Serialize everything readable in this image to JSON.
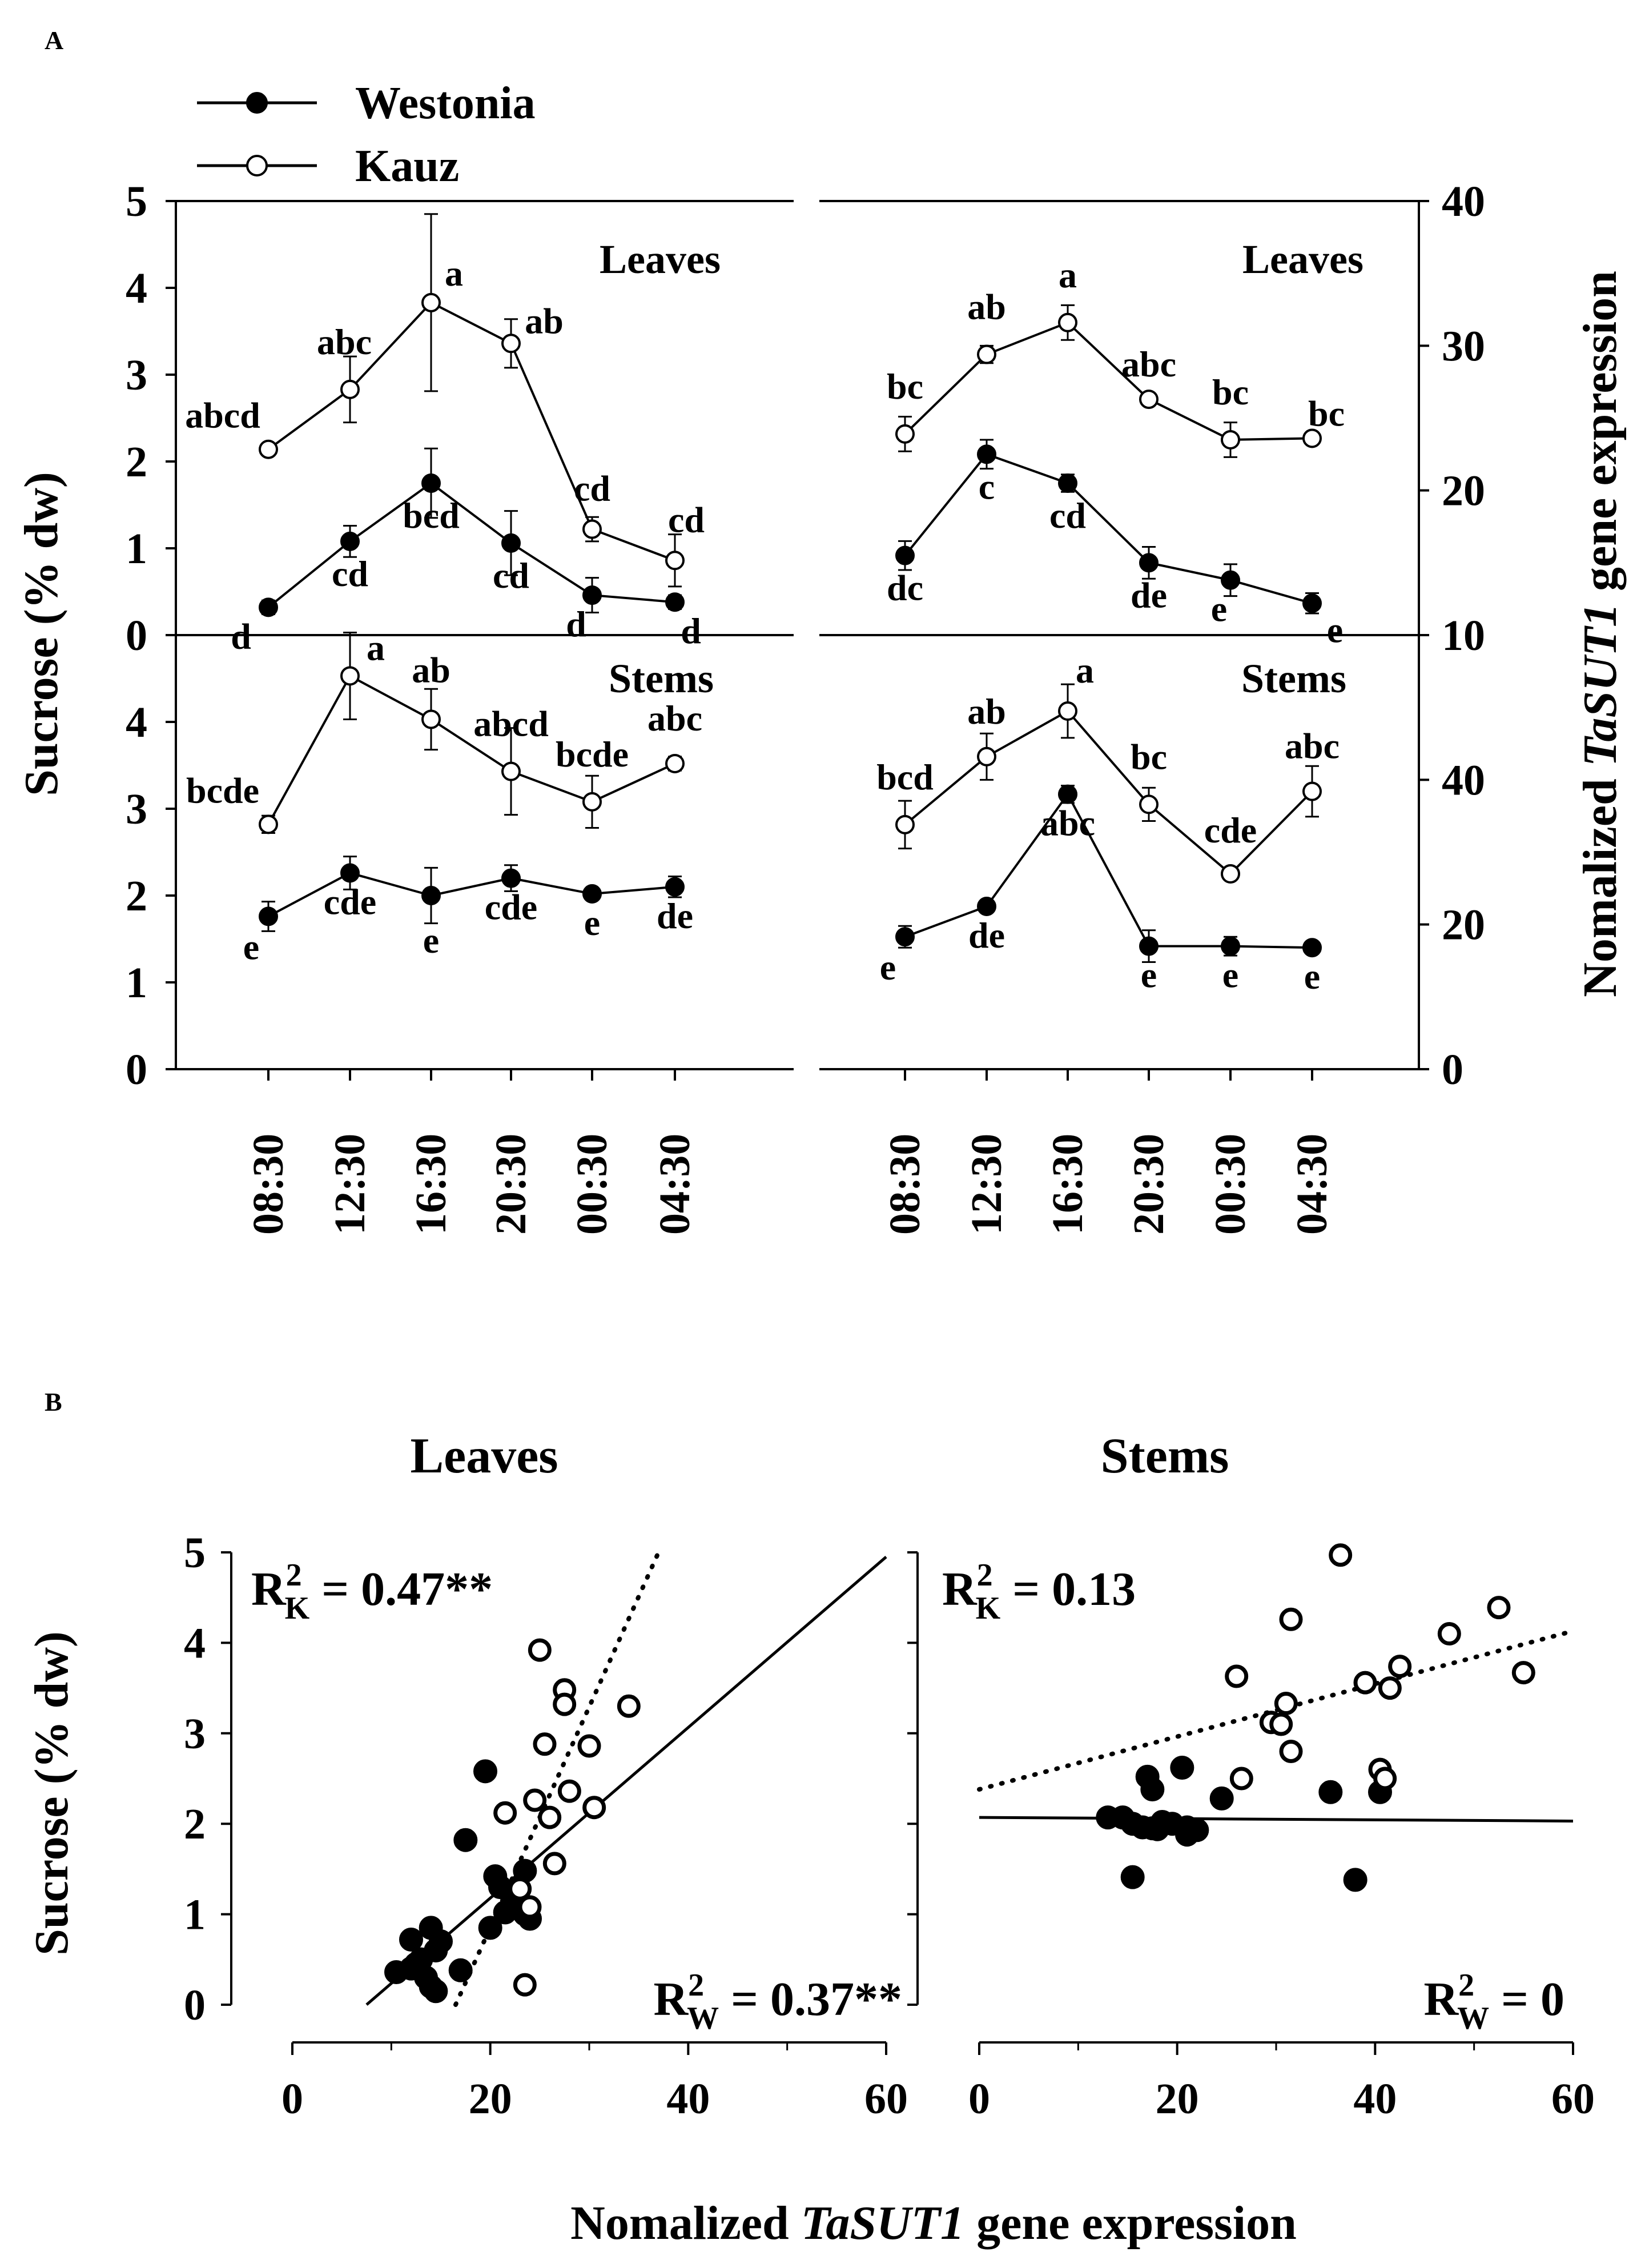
{
  "panel_labels": {
    "a": "A",
    "b": "B"
  },
  "legend": {
    "westonia": "Westonia",
    "kauz": "Kauz"
  },
  "axis_titles": {
    "sucrose": "Sucrose (% dw)",
    "expression_prefix": "Nomalized ",
    "expression_gene": "TaSUT1",
    "expression_suffix": " gene expression"
  },
  "tissues": {
    "leaves": "Leaves",
    "stems": "Stems"
  },
  "columns_b": {
    "leaves": "Leaves",
    "stems": "Stems"
  },
  "colors": {
    "ink": "#000000",
    "background": "#ffffff"
  },
  "chart_data": [
    {
      "id": "A-sucrose-leaves",
      "type": "line",
      "title": "Leaves",
      "ylabel": "Sucrose (% dw)",
      "categories": [
        "08:30",
        "12:30",
        "16:30",
        "20:30",
        "00:30",
        "04:30"
      ],
      "ylim": [
        0,
        5
      ],
      "yticks": [
        "0",
        "1",
        "2",
        "3",
        "4",
        "5"
      ],
      "series": [
        {
          "name": "Westonia",
          "marker": "filled",
          "values": [
            0.32,
            1.08,
            1.75,
            1.06,
            0.46,
            0.38
          ],
          "errors": [
            0.08,
            0.18,
            0.4,
            0.37,
            0.2,
            0.08
          ],
          "letters": [
            "d",
            "cd",
            "bcd",
            "cd",
            "d",
            "d"
          ]
        },
        {
          "name": "Kauz",
          "marker": "open",
          "values": [
            2.14,
            2.83,
            3.83,
            3.36,
            1.22,
            0.86
          ],
          "errors": [
            0.0,
            0.38,
            1.02,
            0.28,
            0.14,
            0.3
          ],
          "letters": [
            "abcd",
            "abc",
            "a",
            "ab",
            "cd",
            "cd"
          ]
        }
      ]
    },
    {
      "id": "A-expression-leaves",
      "type": "line",
      "title": "Leaves",
      "ylabel": "Nomalized TaSUT1 gene expression",
      "categories": [
        "08:30",
        "12:30",
        "16:30",
        "20:30",
        "00:30",
        "04:30"
      ],
      "ylim": [
        10,
        40
      ],
      "yticks": [
        "10",
        "20",
        "30",
        "40"
      ],
      "series": [
        {
          "name": "Westonia",
          "marker": "filled",
          "values": [
            15.5,
            22.5,
            20.5,
            15.0,
            13.8,
            12.2
          ],
          "errors": [
            1.0,
            1.0,
            0.6,
            1.1,
            1.1,
            0.7
          ],
          "letters": [
            "dc",
            "c",
            "cd",
            "de",
            "e",
            "e"
          ]
        },
        {
          "name": "Kauz",
          "marker": "open",
          "values": [
            23.9,
            29.4,
            31.6,
            26.3,
            23.5,
            23.6
          ],
          "errors": [
            1.2,
            0.6,
            1.2,
            0.4,
            1.2,
            0.1
          ],
          "letters": [
            "bc",
            "ab",
            "a",
            "abc",
            "bc",
            "bc"
          ]
        }
      ]
    },
    {
      "id": "A-sucrose-stems",
      "type": "line",
      "title": "Stems",
      "ylabel": "Sucrose (% dw)",
      "categories": [
        "08:30",
        "12:30",
        "16:30",
        "20:30",
        "00:30",
        "04:30"
      ],
      "ylim": [
        0,
        5
      ],
      "yticks": [
        "0",
        "1",
        "2",
        "3",
        "4"
      ],
      "series": [
        {
          "name": "Westonia",
          "marker": "filled",
          "values": [
            1.76,
            2.26,
            2.0,
            2.2,
            2.02,
            2.1
          ],
          "errors": [
            0.17,
            0.19,
            0.32,
            0.15,
            0.03,
            0.12
          ],
          "letters": [
            "e",
            "cde",
            "e",
            "cde",
            "e",
            "de"
          ]
        },
        {
          "name": "Kauz",
          "marker": "open",
          "values": [
            2.82,
            4.53,
            4.03,
            3.43,
            3.08,
            3.52
          ],
          "errors": [
            0.1,
            0.5,
            0.35,
            0.5,
            0.3,
            0.08
          ],
          "letters": [
            "bcde",
            "a",
            "ab",
            "abcd",
            "bcde",
            "abc"
          ]
        }
      ]
    },
    {
      "id": "A-expression-stems",
      "type": "line",
      "title": "Stems",
      "ylabel": "Nomalized TaSUT1 gene expression",
      "categories": [
        "08:30",
        "12:30",
        "16:30",
        "20:30",
        "00:30",
        "04:30"
      ],
      "ylim": [
        0,
        60
      ],
      "yticks": [
        "0",
        "20",
        "40"
      ],
      "series": [
        {
          "name": "Westonia",
          "marker": "filled",
          "values": [
            18.3,
            22.5,
            38.0,
            17.0,
            17.0,
            16.8
          ],
          "errors": [
            1.5,
            0.7,
            1.2,
            2.2,
            1.3,
            0.2
          ],
          "letters": [
            "e",
            "de",
            "abc",
            "e",
            "e",
            "e"
          ]
        },
        {
          "name": "Kauz",
          "marker": "open",
          "values": [
            33.8,
            43.2,
            49.5,
            36.6,
            27.0,
            38.4
          ],
          "errors": [
            3.3,
            3.2,
            3.7,
            2.3,
            0.8,
            3.5
          ],
          "letters": [
            "bcd",
            "ab",
            "a",
            "bc",
            "cde",
            "abc"
          ]
        }
      ]
    },
    {
      "id": "B-leaves",
      "type": "scatter",
      "title": "Leaves",
      "xlabel": "Nomalized TaSUT1 gene expression",
      "ylabel": "Sucrose (% dw)",
      "xlim": [
        0,
        60
      ],
      "ylim": [
        0,
        5
      ],
      "xticks": [
        "0",
        "20",
        "40",
        "60"
      ],
      "yticks": [
        "0",
        "1",
        "2",
        "3",
        "4",
        "5"
      ],
      "annotations": {
        "kauz": {
          "base": "R",
          "sup": "2",
          "sub": "K",
          "value": " = 0.47**"
        },
        "westonia": {
          "base": "R",
          "sup": "2",
          "sub": "W",
          "value": " = 0.37**"
        }
      },
      "series": [
        {
          "name": "Westonia",
          "marker": "filled",
          "x": [
            10.5,
            12.0,
            13.0,
            14.0,
            14.5,
            15.0,
            12.5,
            13.5,
            14.5,
            17.0,
            17.5,
            19.5,
            20.5,
            21.0,
            22.5,
            23.5,
            24.0,
            23.5,
            21.5,
            20.0,
            14.0,
            12.0,
            13.0
          ],
          "y": [
            0.36,
            0.72,
            0.5,
            0.85,
            0.6,
            0.7,
            0.45,
            0.3,
            0.15,
            0.38,
            1.82,
            2.58,
            1.42,
            1.3,
            1.12,
            1.0,
            0.95,
            1.48,
            1.02,
            0.85,
            0.2,
            0.4,
            0.5
          ]
        },
        {
          "name": "Kauz",
          "marker": "open",
          "x": [
            23.5,
            24.0,
            25.0,
            25.5,
            26.0,
            26.5,
            27.5,
            27.5,
            28.0,
            30.0,
            30.5,
            34.0,
            21.5,
            23.0,
            24.5
          ],
          "y": [
            0.22,
            1.08,
            3.92,
            2.88,
            2.07,
            1.56,
            3.48,
            3.32,
            2.36,
            2.86,
            2.18,
            3.3,
            2.12,
            1.28,
            2.26
          ]
        }
      ],
      "fits": [
        {
          "name": "Westonia",
          "style": "solid",
          "x": [
            7.5,
            60
          ],
          "y": [
            0.0,
            4.95
          ]
        },
        {
          "name": "Kauz",
          "style": "dotted",
          "x": [
            16.5,
            37.0
          ],
          "y": [
            0.0,
            5.0
          ]
        }
      ]
    },
    {
      "id": "B-stems",
      "type": "scatter",
      "title": "Stems",
      "xlabel": "Nomalized TaSUT1 gene expression",
      "xlim": [
        0,
        60
      ],
      "ylim": [
        0,
        5
      ],
      "xticks": [
        "0",
        "20",
        "40",
        "60"
      ],
      "annotations": {
        "kauz": {
          "base": "R",
          "sup": "2",
          "sub": "K",
          "value": " = 0.13"
        },
        "westonia": {
          "base": "R",
          "sup": "2",
          "sub": "W",
          "value": " = 0"
        }
      },
      "series": [
        {
          "name": "Westonia",
          "marker": "filled",
          "x": [
            13.0,
            14.5,
            15.5,
            16.5,
            17.0,
            17.5,
            17.5,
            18.0,
            18.5,
            19.5,
            20.5,
            21.0,
            21.0,
            22.0,
            24.5,
            35.5,
            38.0,
            40.5,
            15.5
          ],
          "y": [
            2.07,
            2.07,
            2.0,
            1.96,
            2.52,
            2.38,
            1.95,
            1.94,
            2.02,
            2.0,
            2.62,
            1.88,
            1.96,
            1.93,
            2.28,
            2.35,
            1.38,
            2.35,
            1.41
          ]
        },
        {
          "name": "Kauz",
          "marker": "open",
          "x": [
            26.0,
            26.5,
            29.5,
            30.5,
            31.0,
            31.5,
            31.5,
            36.5,
            39.0,
            40.5,
            41.0,
            41.5,
            42.5,
            47.5,
            52.5,
            55.0
          ],
          "y": [
            3.63,
            2.5,
            3.12,
            3.1,
            3.33,
            2.8,
            4.26,
            4.97,
            3.56,
            2.6,
            2.5,
            3.5,
            3.74,
            4.1,
            4.39,
            3.67
          ]
        }
      ],
      "fits": [
        {
          "name": "Westonia",
          "style": "solid",
          "x": [
            0,
            60
          ],
          "y": [
            2.07,
            2.03
          ]
        },
        {
          "name": "Kauz",
          "style": "dotted",
          "x": [
            0,
            60
          ],
          "y": [
            2.38,
            4.13
          ]
        }
      ]
    }
  ]
}
